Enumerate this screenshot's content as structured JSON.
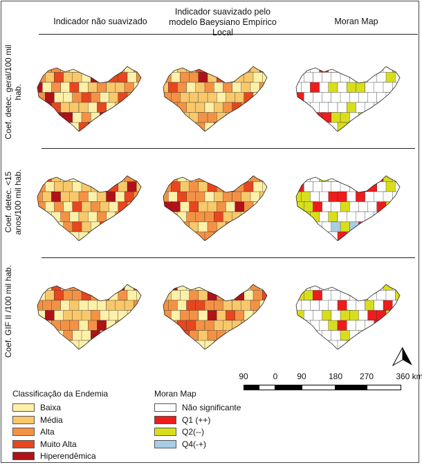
{
  "columns": [
    "Indicador não suavizado",
    "Indicador suavizado pelo modelo Baeysiano Empírico Local",
    "Moran Map"
  ],
  "rows": [
    "Coef. detec. geral/100 mil hab.",
    "Coef. detec. <15 anos/100 mil hab.",
    "Coef. GIF II /100 mil hab."
  ],
  "colors": {
    "baixa": "#FDF0A8",
    "media": "#F8C86A",
    "alta": "#F39245",
    "muito_alta": "#E8461E",
    "hiper": "#B01217",
    "nao_sig": "#FFFFFF",
    "q1": "#EE1C1C",
    "q2": "#D9DE1A",
    "q4": "#A8CDE6"
  },
  "legend_endemia": {
    "title": "Classificação da Endemia",
    "items": [
      "Baixa",
      "Média",
      "Alta",
      "Muito Alta",
      "Hiperendêmica"
    ]
  },
  "legend_moran": {
    "title": "Moran Map",
    "items": [
      "Não significante",
      "Q1 (++)",
      "Q2(--)",
      "Q4(-+)"
    ]
  },
  "scale_bar": {
    "labels": [
      "90",
      "0",
      "90",
      "180",
      "270",
      "360 km"
    ]
  },
  "north_label": "N"
}
